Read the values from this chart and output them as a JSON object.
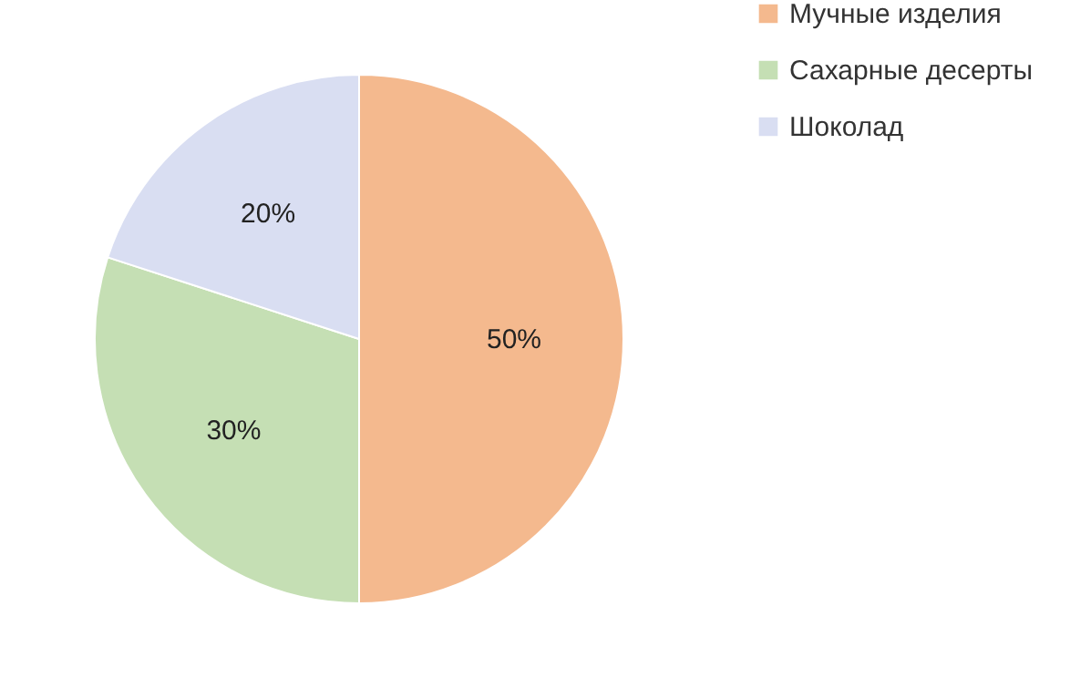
{
  "chart_data": {
    "type": "pie",
    "categories": [
      "Мучные изделия",
      "Сахарные десерты",
      "Шоколад"
    ],
    "values": [
      50,
      30,
      20
    ],
    "colors": [
      "#f4b98e",
      "#c5dfb4",
      "#d9def2"
    ],
    "value_labels": [
      "50%",
      "30%",
      "20%"
    ],
    "legend": "right"
  }
}
